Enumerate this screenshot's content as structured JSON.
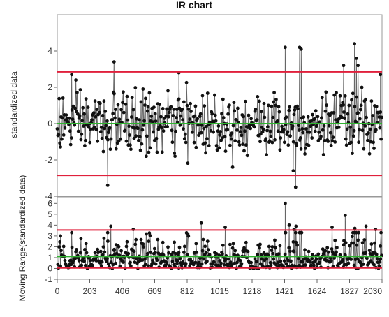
{
  "chart_data": {
    "title": "IR chart",
    "n_points": 2030,
    "x_tick_labels": [
      "0",
      "203",
      "406",
      "609",
      "812",
      "1015",
      "1218",
      "1421",
      "1624",
      "1827",
      "2030"
    ],
    "x_ticks": [
      0,
      203,
      406,
      609,
      812,
      1015,
      1218,
      1421,
      1624,
      1827,
      2030
    ],
    "colors": {
      "control_limit": "#e0203c",
      "center_line": "#2fb32f",
      "series_line": "#666666",
      "marker": "#111111",
      "frame": "#999999"
    },
    "panels": [
      {
        "name": "individuals",
        "type": "line",
        "ylabel": "standardized data",
        "ylim": [
          -4,
          6
        ],
        "y_ticks": [
          -4,
          -2,
          0,
          2,
          4
        ],
        "y_tick_labels": [
          "-4",
          "-2",
          "0",
          "2",
          "4"
        ],
        "center_line": 0,
        "upper_control_limit": 2.85,
        "lower_control_limit": -2.85,
        "highlighted_points": [
          {
            "x": 90,
            "y": 2.7
          },
          {
            "x": 315,
            "y": -3.4
          },
          {
            "x": 355,
            "y": 3.4
          },
          {
            "x": 760,
            "y": 2.8
          },
          {
            "x": 1425,
            "y": 4.2
          },
          {
            "x": 1475,
            "y": -2.6
          },
          {
            "x": 1490,
            "y": -3.5
          },
          {
            "x": 1515,
            "y": 4.2
          },
          {
            "x": 1525,
            "y": 4.1
          },
          {
            "x": 1790,
            "y": 3.2
          },
          {
            "x": 1858,
            "y": 4.4
          },
          {
            "x": 1870,
            "y": 3.6
          },
          {
            "x": 1880,
            "y": 3.2
          },
          {
            "x": 2020,
            "y": 2.7
          }
        ]
      },
      {
        "name": "moving-range",
        "type": "line",
        "ylabel": "Moving Range(standardized data)",
        "ylim": [
          -1,
          6.6
        ],
        "y_ticks": [
          -1,
          0,
          1,
          2,
          3,
          4,
          5,
          6
        ],
        "y_tick_labels": [
          "-1",
          "0",
          "1",
          "2",
          "3",
          "4",
          "5",
          "6"
        ],
        "center_line": 1.1,
        "upper_control_limit": 3.55,
        "lower_control_limit": 0.05,
        "highlighted_points": [
          {
            "x": 20,
            "y": 3.0
          },
          {
            "x": 335,
            "y": 3.9
          },
          {
            "x": 475,
            "y": 3.6
          },
          {
            "x": 900,
            "y": 4.2
          },
          {
            "x": 1050,
            "y": 3.8
          },
          {
            "x": 1425,
            "y": 6.0
          },
          {
            "x": 1450,
            "y": 4.0
          },
          {
            "x": 1480,
            "y": 3.6
          },
          {
            "x": 1492,
            "y": 3.9
          },
          {
            "x": 1718,
            "y": 3.8
          },
          {
            "x": 1800,
            "y": 4.9
          },
          {
            "x": 1860,
            "y": 3.7
          },
          {
            "x": 1930,
            "y": 3.9
          },
          {
            "x": 1990,
            "y": 3.6
          }
        ]
      }
    ]
  }
}
